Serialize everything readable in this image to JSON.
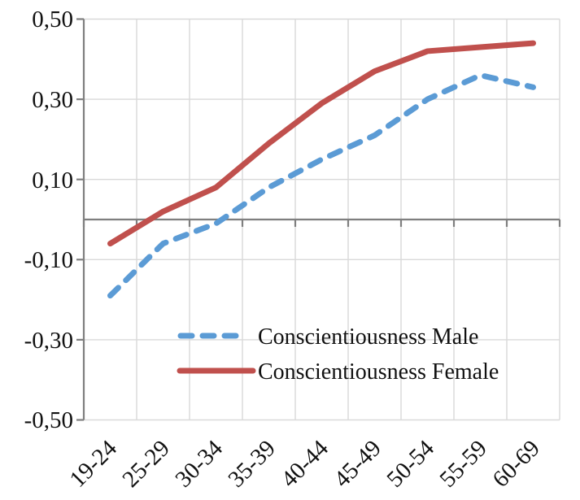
{
  "chart_data": {
    "type": "line",
    "categories": [
      "19-24",
      "25-29",
      "30-34",
      "35-39",
      "40-44",
      "45-49",
      "50-54",
      "55-59",
      "60-69"
    ],
    "series": [
      {
        "name": "Conscientiousness Male",
        "values": [
          -0.19,
          -0.06,
          -0.01,
          0.08,
          0.15,
          0.21,
          0.3,
          0.36,
          0.33
        ],
        "color": "#5B9BD5",
        "style": "dashed"
      },
      {
        "name": "Conscientiousness Female",
        "values": [
          -0.06,
          0.02,
          0.08,
          0.19,
          0.29,
          0.37,
          0.42,
          0.43,
          0.44
        ],
        "color": "#C0504D",
        "style": "solid"
      }
    ],
    "title": "",
    "xlabel": "",
    "ylabel": "",
    "ylim": [
      -0.5,
      0.5
    ],
    "ytick_values": [
      0.5,
      0.3,
      0.1,
      -0.1,
      -0.3,
      -0.5
    ],
    "ytick_labels": [
      "0,50",
      "0,30",
      "0,10",
      "-0,10",
      "-0,30",
      "-0,50"
    ],
    "grid": true,
    "legend_position": "inside-bottom-center",
    "axis_color": "#7F7F7F",
    "grid_color": "#D9D9D9",
    "background": "#FFFFFF"
  }
}
